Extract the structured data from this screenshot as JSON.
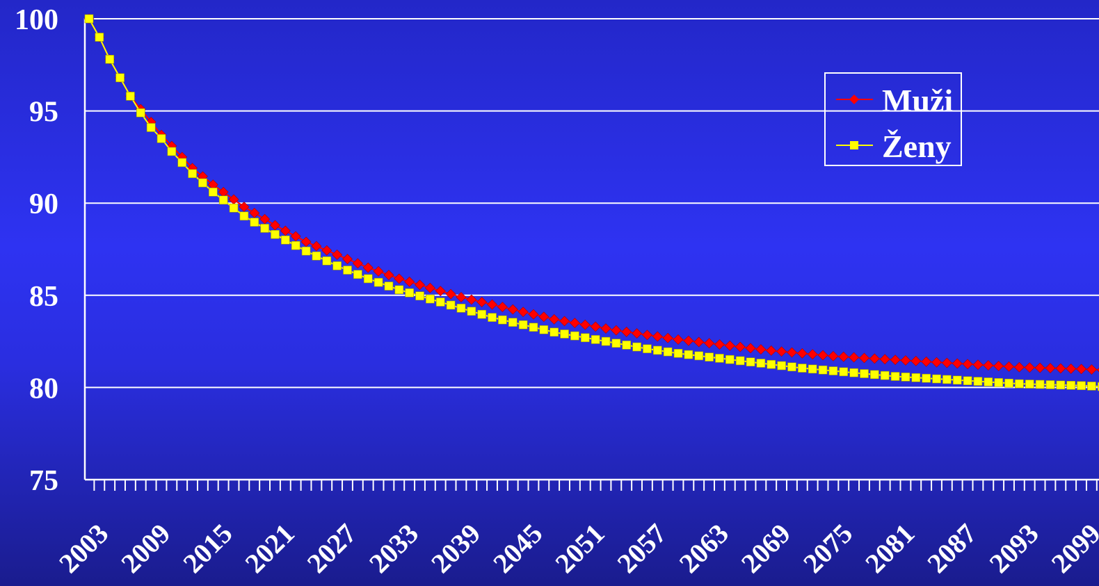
{
  "chart_data": {
    "type": "line",
    "title": "",
    "xlabel": "",
    "ylabel": "",
    "ylim": [
      75,
      100
    ],
    "y_ticks": [
      75,
      80,
      85,
      90,
      95,
      100
    ],
    "x_range": [
      2003,
      2101
    ],
    "x_tick_labels": [
      "2003",
      "2009",
      "2015",
      "2021",
      "2027",
      "2033",
      "2039",
      "2045",
      "2051",
      "2057",
      "2063",
      "2069",
      "2075",
      "2081",
      "2087",
      "2093",
      "2099"
    ],
    "grid": true,
    "legend_position": "top-right",
    "series": [
      {
        "name": "Muži",
        "color": "#ff0000",
        "marker": "diamond",
        "key_points": [
          [
            2003,
            100
          ],
          [
            2004,
            99
          ],
          [
            2005,
            97.8
          ],
          [
            2006,
            96.8
          ],
          [
            2007,
            95.8
          ],
          [
            2008,
            95.1
          ],
          [
            2009,
            94.4
          ],
          [
            2010,
            93.7
          ],
          [
            2011,
            93.1
          ],
          [
            2012,
            92.5
          ],
          [
            2013,
            91.9
          ],
          [
            2015,
            91.0
          ],
          [
            2018,
            89.8
          ],
          [
            2021,
            88.8
          ],
          [
            2024,
            87.9
          ],
          [
            2027,
            87.2
          ],
          [
            2030,
            86.5
          ],
          [
            2033,
            85.9
          ],
          [
            2036,
            85.4
          ],
          [
            2039,
            84.9
          ],
          [
            2042,
            84.5
          ],
          [
            2045,
            84.1
          ],
          [
            2048,
            83.7
          ],
          [
            2051,
            83.4
          ],
          [
            2054,
            83.1
          ],
          [
            2057,
            82.85
          ],
          [
            2060,
            82.6
          ],
          [
            2063,
            82.4
          ],
          [
            2066,
            82.2
          ],
          [
            2069,
            82.0
          ],
          [
            2072,
            81.85
          ],
          [
            2075,
            81.7
          ],
          [
            2078,
            81.6
          ],
          [
            2081,
            81.5
          ],
          [
            2084,
            81.4
          ],
          [
            2087,
            81.3
          ],
          [
            2090,
            81.2
          ],
          [
            2093,
            81.1
          ],
          [
            2096,
            81.05
          ],
          [
            2099,
            81.0
          ],
          [
            2101,
            80.95
          ]
        ]
      },
      {
        "name": "Ženy",
        "color": "#ffff00",
        "marker": "square",
        "key_points": [
          [
            2003,
            100
          ],
          [
            2004,
            99
          ],
          [
            2005,
            97.8
          ],
          [
            2006,
            96.8
          ],
          [
            2007,
            95.8
          ],
          [
            2008,
            94.9
          ],
          [
            2009,
            94.1
          ],
          [
            2010,
            93.5
          ],
          [
            2011,
            92.8
          ],
          [
            2012,
            92.2
          ],
          [
            2013,
            91.6
          ],
          [
            2015,
            90.6
          ],
          [
            2018,
            89.3
          ],
          [
            2021,
            88.3
          ],
          [
            2024,
            87.4
          ],
          [
            2027,
            86.6
          ],
          [
            2030,
            85.9
          ],
          [
            2033,
            85.3
          ],
          [
            2036,
            84.8
          ],
          [
            2039,
            84.3
          ],
          [
            2042,
            83.8
          ],
          [
            2045,
            83.4
          ],
          [
            2048,
            83.0
          ],
          [
            2051,
            82.7
          ],
          [
            2054,
            82.4
          ],
          [
            2057,
            82.1
          ],
          [
            2060,
            81.85
          ],
          [
            2063,
            81.65
          ],
          [
            2066,
            81.45
          ],
          [
            2069,
            81.25
          ],
          [
            2072,
            81.05
          ],
          [
            2075,
            80.9
          ],
          [
            2078,
            80.75
          ],
          [
            2081,
            80.6
          ],
          [
            2084,
            80.5
          ],
          [
            2087,
            80.4
          ],
          [
            2090,
            80.3
          ],
          [
            2093,
            80.2
          ],
          [
            2096,
            80.15
          ],
          [
            2099,
            80.1
          ],
          [
            2101,
            80.05
          ]
        ]
      }
    ]
  }
}
